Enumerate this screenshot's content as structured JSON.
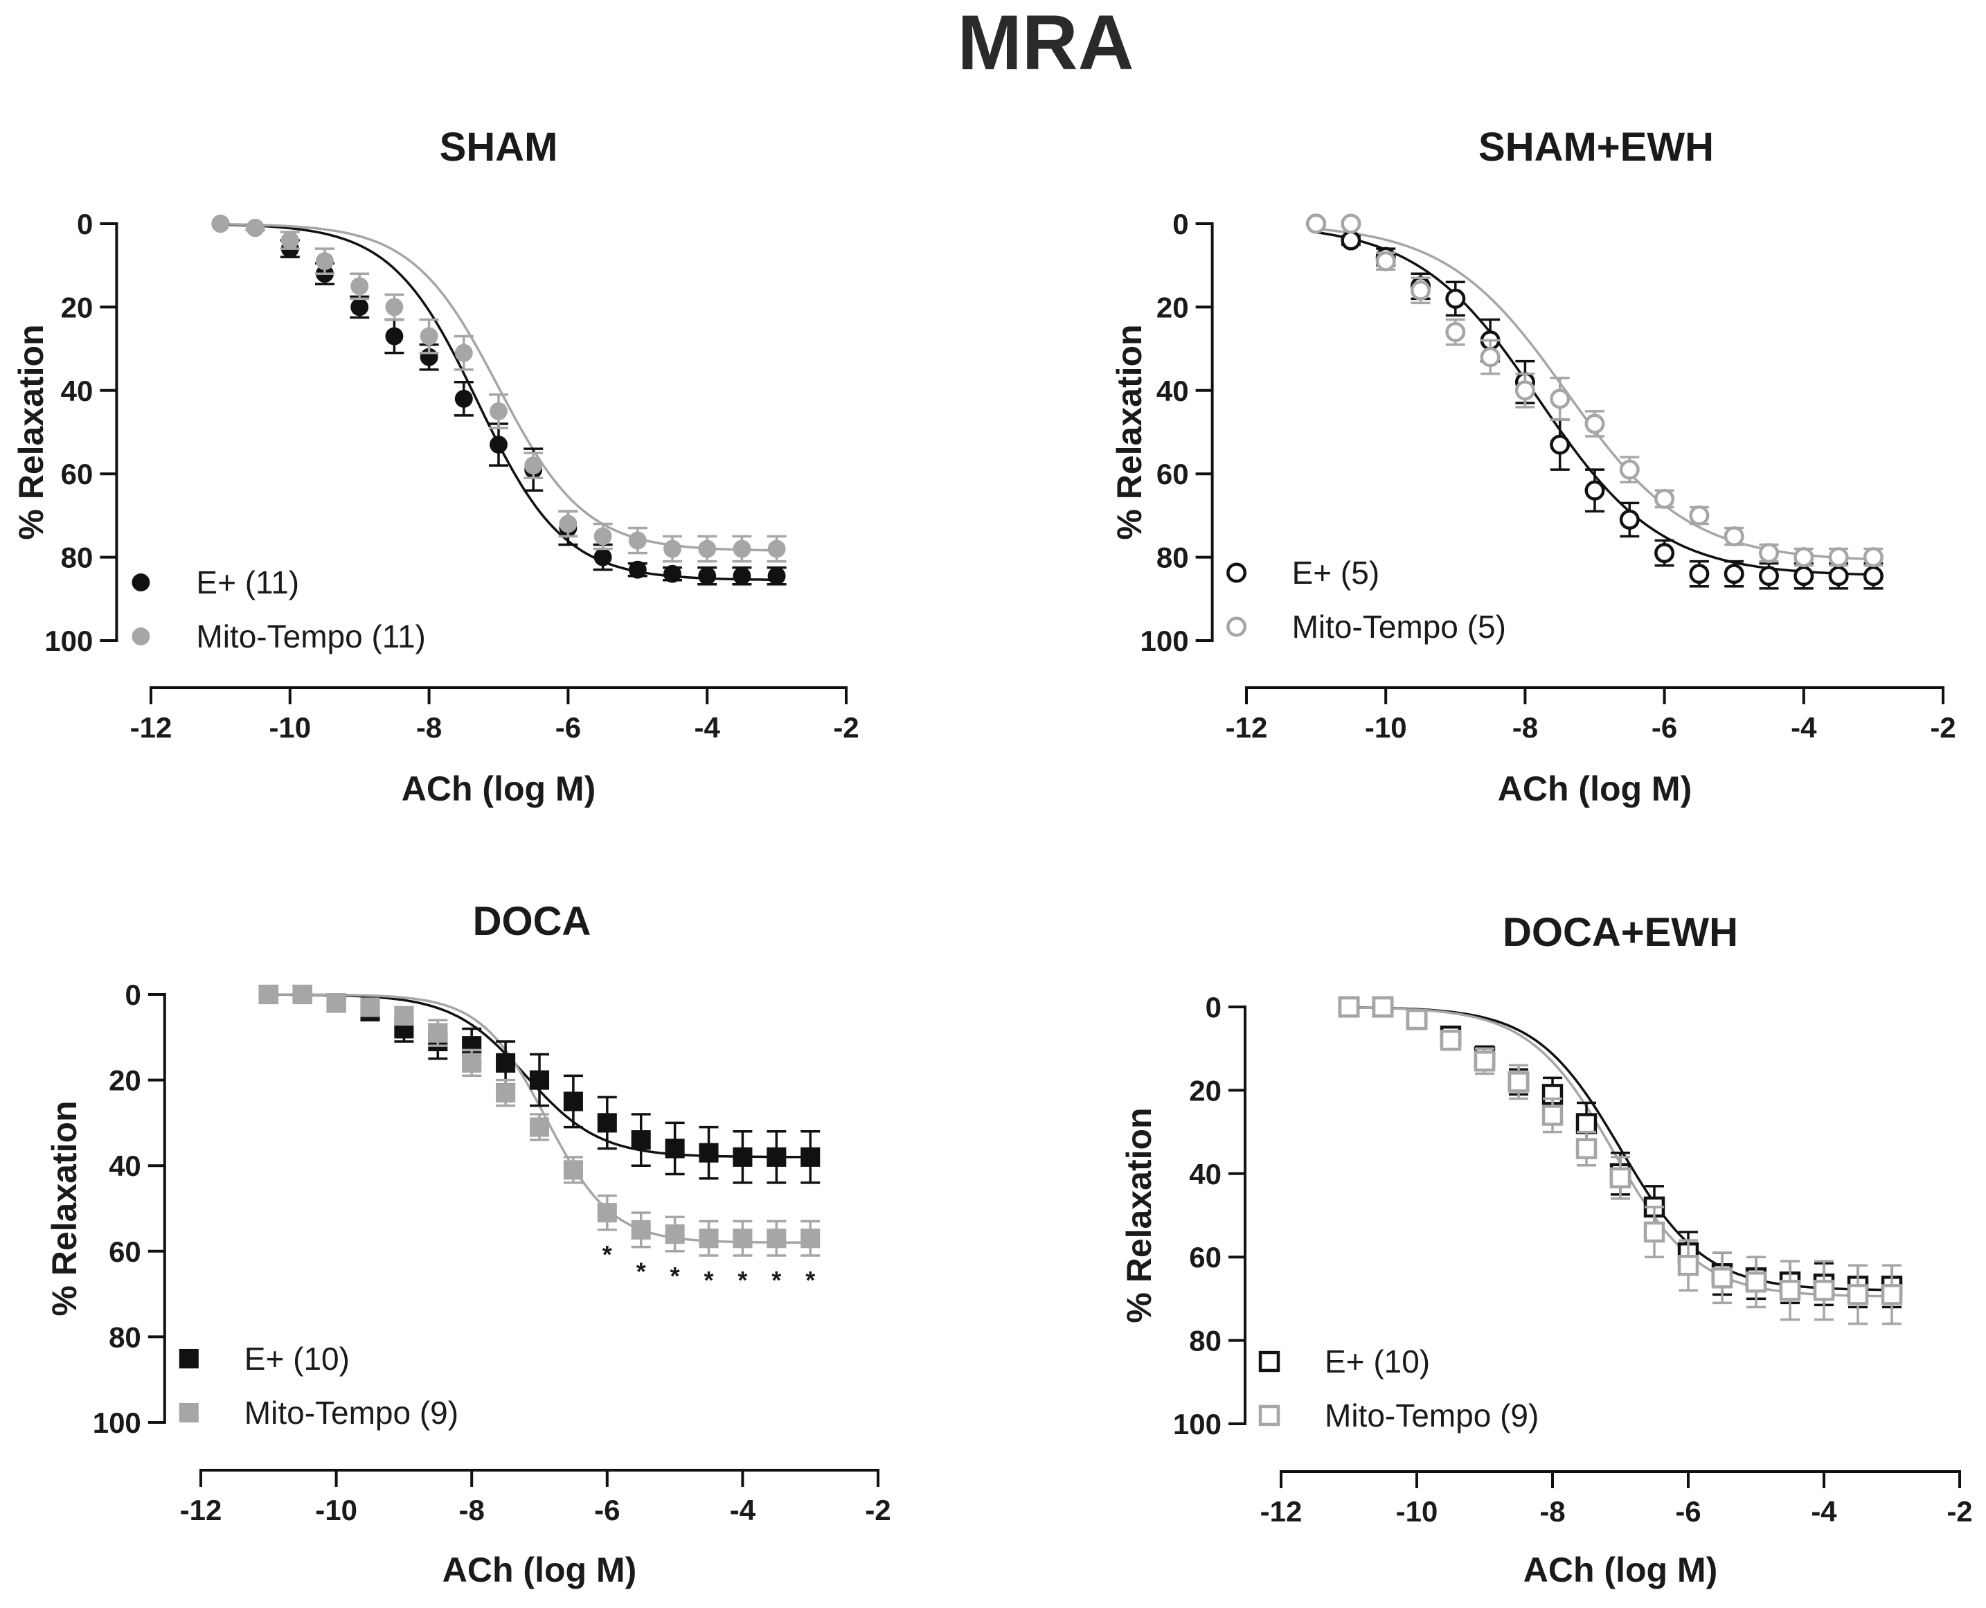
{
  "figure_title": "MRA",
  "chart_data": [
    {
      "id": "sham",
      "type": "scatter",
      "title": "SHAM",
      "xlabel": "ACh (log M)",
      "ylabel": "% Relaxation",
      "xlim": [
        -12,
        -2
      ],
      "ylim": [
        0,
        100
      ],
      "y_inverted": true,
      "xticks": [
        -12,
        -10,
        -8,
        -6,
        -4,
        -2
      ],
      "xtick_labels": [
        "-12",
        "-10",
        "-8",
        "-6",
        "-4",
        "-2"
      ],
      "yticks": [
        0,
        20,
        40,
        60,
        80,
        100
      ],
      "ytick_labels": [
        "0",
        "20",
        "40",
        "60",
        "80",
        "100"
      ],
      "legend_position": "bottom-left",
      "x": [
        -11,
        -10.5,
        -10,
        -9.5,
        -9,
        -8.5,
        -8,
        -7.5,
        -7,
        -6.5,
        -6,
        -5.5,
        -5,
        -4.5,
        -4,
        -3.5,
        -3
      ],
      "series": [
        {
          "name": "E+ (11)",
          "color": "#111111",
          "marker": "circle",
          "filled": true,
          "values": [
            0,
            1,
            6,
            12,
            20,
            27,
            32,
            42,
            53,
            59,
            73,
            80,
            83,
            84,
            84.5,
            84.5,
            84.5
          ],
          "errors": [
            0,
            0.5,
            2,
            2.5,
            2.5,
            4,
            3,
            4,
            5,
            5,
            4,
            3,
            1.5,
            1.5,
            2,
            2,
            2
          ],
          "fit_top": 0,
          "fit_bottom": 85.5,
          "fit_logec50": -7.3,
          "fit_hill": 0.7
        },
        {
          "name": "Mito-Tempo (11)",
          "color": "#a6a6a6",
          "marker": "circle",
          "filled": true,
          "values": [
            0,
            1,
            4,
            9,
            15,
            20,
            27,
            31,
            45,
            58,
            72,
            75,
            76,
            78,
            78,
            78,
            78
          ],
          "errors": [
            0,
            0.5,
            2,
            3,
            3,
            3,
            4,
            4,
            4,
            3,
            3,
            3,
            3,
            3,
            3,
            3,
            3
          ],
          "fit_top": 0,
          "fit_bottom": 78.5,
          "fit_logec50": -7.0,
          "fit_hill": 0.7
        }
      ]
    },
    {
      "id": "sham_ewh",
      "type": "scatter",
      "title": "SHAM+EWH",
      "xlabel": "ACh (log M)",
      "ylabel": "% Relaxation",
      "xlim": [
        -12,
        -2
      ],
      "ylim": [
        0,
        100
      ],
      "y_inverted": true,
      "xticks": [
        -12,
        -10,
        -8,
        -6,
        -4,
        -2
      ],
      "xtick_labels": [
        "-12",
        "-10",
        "-8",
        "-6",
        "-4",
        "-2"
      ],
      "yticks": [
        0,
        20,
        40,
        60,
        80,
        100
      ],
      "ytick_labels": [
        "0",
        "20",
        "40",
        "60",
        "80",
        "100"
      ],
      "legend_position": "bottom-left",
      "x": [
        -11,
        -10.5,
        -10,
        -9.5,
        -9,
        -8.5,
        -8,
        -7.5,
        -7,
        -6.5,
        -6,
        -5.5,
        -5,
        -4.5,
        -4,
        -3.5,
        -3
      ],
      "series": [
        {
          "name": "E+ (5)",
          "color": "#111111",
          "marker": "circle",
          "filled": false,
          "values": [
            0,
            4,
            8,
            15,
            18,
            28,
            38,
            53,
            64,
            71,
            79,
            84,
            84,
            84.5,
            84.5,
            84.5,
            84.5
          ],
          "errors": [
            0,
            1,
            2,
            3,
            4,
            5,
            5,
            6,
            5,
            4,
            3,
            3,
            3,
            3,
            3,
            3,
            3
          ],
          "fit_top": 0,
          "fit_bottom": 84.5,
          "fit_logec50": -7.8,
          "fit_hill": 0.5
        },
        {
          "name": "Mito-Tempo (5)",
          "color": "#a6a6a6",
          "marker": "circle",
          "filled": false,
          "values": [
            0,
            0,
            9,
            16,
            26,
            32,
            40,
            42,
            48,
            59,
            66,
            70,
            75,
            79,
            80,
            80,
            80
          ],
          "errors": [
            0,
            0.5,
            2,
            3,
            3,
            4,
            4,
            5,
            3,
            3,
            2,
            2,
            2,
            2,
            2,
            2,
            2
          ],
          "fit_top": 0,
          "fit_bottom": 81,
          "fit_logec50": -7.4,
          "fit_hill": 0.5
        }
      ]
    },
    {
      "id": "doca",
      "type": "scatter",
      "title": "DOCA",
      "xlabel": "ACh (log M)",
      "ylabel": "% Relaxation",
      "xlim": [
        -12,
        -2
      ],
      "ylim": [
        0,
        100
      ],
      "y_inverted": true,
      "xticks": [
        -12,
        -10,
        -8,
        -6,
        -4,
        -2
      ],
      "xtick_labels": [
        "-12",
        "-10",
        "-8",
        "-6",
        "-4",
        "-2"
      ],
      "yticks": [
        0,
        20,
        40,
        60,
        80,
        100
      ],
      "ytick_labels": [
        "0",
        "20",
        "40",
        "60",
        "80",
        "100"
      ],
      "legend_position": "bottom-left",
      "annotations": [
        {
          "x": -6,
          "text": "*"
        },
        {
          "x": -5.5,
          "text": "*"
        },
        {
          "x": -5,
          "text": "*"
        },
        {
          "x": -4.5,
          "text": "*"
        },
        {
          "x": -4,
          "text": "*"
        },
        {
          "x": -3.5,
          "text": "*"
        },
        {
          "x": -3,
          "text": "*"
        }
      ],
      "x": [
        -11,
        -10.5,
        -10,
        -9.5,
        -9,
        -8.5,
        -8,
        -7.5,
        -7,
        -6.5,
        -6,
        -5.5,
        -5,
        -4.5,
        -4,
        -3.5,
        -3
      ],
      "series": [
        {
          "name": "E+ (10)",
          "color": "#111111",
          "marker": "square",
          "filled": true,
          "values": [
            0,
            0,
            2,
            4,
            8,
            11,
            12,
            16,
            20,
            25,
            30,
            34,
            36,
            37,
            38,
            38,
            38
          ],
          "errors": [
            0,
            0.5,
            1,
            2,
            3,
            4,
            4,
            5,
            6,
            6,
            6,
            6,
            6,
            6,
            6,
            6,
            6
          ],
          "fit_top": 0,
          "fit_bottom": 38,
          "fit_logec50": -7.2,
          "fit_hill": 0.8
        },
        {
          "name": "Mito-Tempo (9)",
          "color": "#a6a6a6",
          "marker": "square",
          "filled": true,
          "values": [
            0,
            0,
            2,
            3,
            5,
            9,
            16,
            23,
            31,
            41,
            51,
            55,
            56,
            57,
            57,
            57,
            57
          ],
          "errors": [
            0,
            0.5,
            1,
            1.5,
            2,
            3,
            3,
            3,
            3,
            3,
            4,
            4,
            4,
            4,
            4,
            4,
            4
          ],
          "fit_top": 0,
          "fit_bottom": 58,
          "fit_logec50": -6.9,
          "fit_hill": 0.9
        }
      ]
    },
    {
      "id": "doca_ewh",
      "type": "scatter",
      "title": "DOCA+EWH",
      "xlabel": "ACh (log M)",
      "ylabel": "% Relaxation",
      "xlim": [
        -12,
        -2
      ],
      "ylim": [
        0,
        100
      ],
      "y_inverted": true,
      "xticks": [
        -12,
        -10,
        -8,
        -6,
        -4,
        -2
      ],
      "xtick_labels": [
        "-12",
        "-10",
        "-8",
        "-6",
        "-4",
        "-2"
      ],
      "yticks": [
        0,
        20,
        40,
        60,
        80,
        100
      ],
      "ytick_labels": [
        "0",
        "20",
        "40",
        "60",
        "80",
        "100"
      ],
      "legend_position": "bottom-left",
      "x": [
        -11,
        -10.5,
        -10,
        -9.5,
        -9,
        -8.5,
        -8,
        -7.5,
        -7,
        -6.5,
        -6,
        -5.5,
        -5,
        -4.5,
        -4,
        -3.5,
        -3
      ],
      "series": [
        {
          "name": "E+ (10)",
          "color": "#111111",
          "marker": "square",
          "filled": false,
          "values": [
            0,
            0,
            3,
            7,
            12,
            18,
            21,
            28,
            40,
            48,
            59,
            64,
            65,
            66,
            66.5,
            67,
            67
          ],
          "errors": [
            0,
            0.5,
            1,
            2,
            2.5,
            3,
            4,
            5,
            5,
            5,
            5,
            5,
            5,
            5,
            5,
            5,
            5
          ],
          "fit_top": 0,
          "fit_bottom": 68,
          "fit_logec50": -7.0,
          "fit_hill": 0.7
        },
        {
          "name": "Mito-Tempo (9)",
          "color": "#a6a6a6",
          "marker": "square",
          "filled": false,
          "values": [
            0,
            0,
            3,
            8,
            13,
            18,
            26,
            34,
            41,
            54,
            62,
            65,
            66,
            68,
            68,
            69,
            69
          ],
          "errors": [
            0,
            0.5,
            1,
            2,
            3,
            4,
            4,
            4,
            5,
            6,
            6,
            6,
            6,
            7,
            7,
            7,
            7
          ],
          "fit_top": 0,
          "fit_bottom": 69.5,
          "fit_logec50": -7.1,
          "fit_hill": 0.7
        }
      ]
    }
  ]
}
